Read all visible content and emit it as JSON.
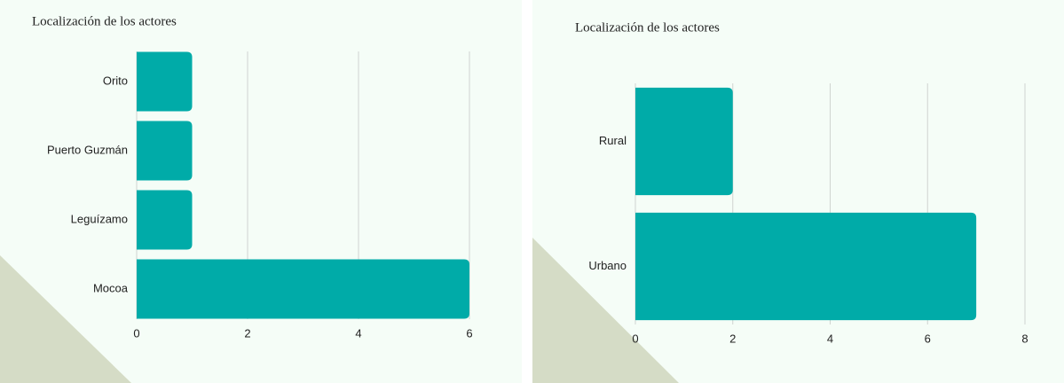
{
  "chart_data": [
    {
      "type": "bar",
      "orientation": "horizontal",
      "title": "Localización de los actores",
      "categories": [
        "Orito",
        "Puerto Guzmán",
        "Leguízamo",
        "Mocoa"
      ],
      "values": [
        1,
        1,
        1,
        6
      ],
      "color": "#00aba8",
      "xlim": [
        0,
        6
      ],
      "xticks": [
        0,
        2,
        4,
        6
      ],
      "grid": true
    },
    {
      "type": "bar",
      "orientation": "horizontal",
      "title": "Localización de los actores",
      "categories": [
        "Rural",
        "Urbano"
      ],
      "values": [
        2,
        7
      ],
      "color": "#00aba8",
      "xlim": [
        0,
        8
      ],
      "xticks": [
        0,
        2,
        4,
        6,
        8
      ],
      "grid": true
    }
  ]
}
